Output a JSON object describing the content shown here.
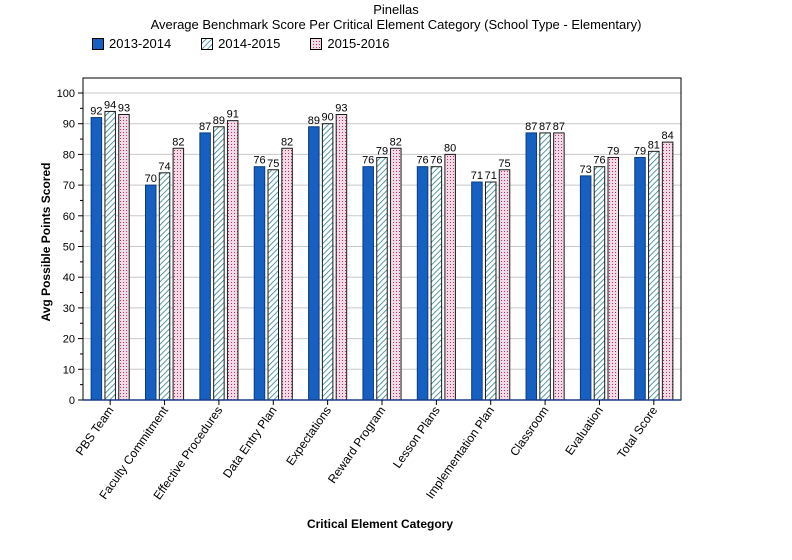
{
  "chart_data": {
    "type": "bar",
    "title": "Pinellas",
    "subtitle": "Average Benchmark Score Per Critical Element Category (School Type - Elementary)",
    "xlabel": "Critical Element Category",
    "ylabel": "Avg Possible Points Scored",
    "ylim": [
      0,
      100
    ],
    "yticks": [
      0,
      10,
      20,
      30,
      40,
      50,
      60,
      70,
      80,
      90,
      100
    ],
    "grid": true,
    "legend_position": "top-left",
    "categories": [
      "PBS Team",
      "Faculty Commitment",
      "Effective Procedures",
      "Data Entry Plan",
      "Expectations",
      "Reward Program",
      "Lesson Plans",
      "Implementation Plan",
      "Classroom",
      "Evaluation",
      "Total Score"
    ],
    "series": [
      {
        "name": "2013-2014",
        "color": "#1560c0",
        "pattern": "solid",
        "values": [
          92,
          70,
          87,
          76,
          89,
          76,
          76,
          71,
          87,
          73,
          79
        ]
      },
      {
        "name": "2014-2015",
        "color": "#1a7a8a",
        "pattern": "diagonal-hatch",
        "values": [
          94,
          74,
          89,
          75,
          90,
          79,
          76,
          71,
          87,
          76,
          81
        ]
      },
      {
        "name": "2015-2016",
        "color": "#b0306a",
        "pattern": "dotted",
        "values": [
          93,
          82,
          91,
          82,
          93,
          82,
          80,
          75,
          87,
          79,
          84
        ]
      }
    ]
  }
}
